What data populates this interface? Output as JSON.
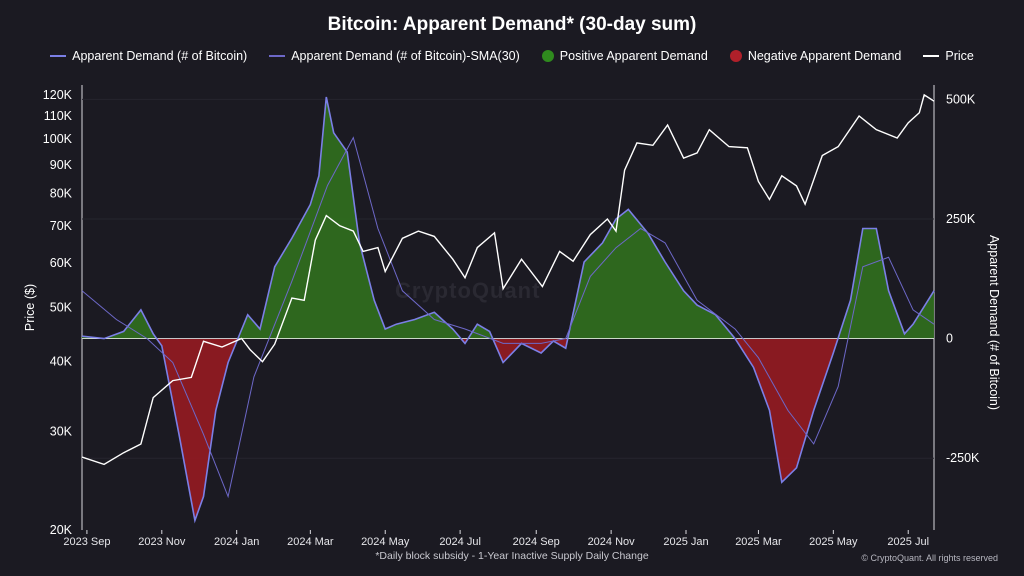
{
  "chart_data": {
    "type": "line",
    "title": "Bitcoin: Apparent Demand* (30-day sum)",
    "footnote": "*Daily block subsidy - 1-Year Inactive Supply Daily Change",
    "copyright": "© CryptoQuant. All rights reserved",
    "watermark": "CryptoQuant",
    "y_left": {
      "label": "Price ($)",
      "scale": "log",
      "range": [
        20000,
        125000
      ],
      "ticks": [
        20000,
        30000,
        40000,
        50000,
        60000,
        70000,
        80000,
        90000,
        100000,
        110000,
        120000
      ],
      "tick_labels": [
        "20K",
        "30K",
        "40K",
        "50K",
        "60K",
        "70K",
        "80K",
        "90K",
        "100K",
        "110K",
        "120K"
      ]
    },
    "y_right": {
      "label": "Apparent Demand (# of Bitcoin)",
      "range": [
        -400000,
        530000
      ],
      "ticks": [
        -250000,
        0,
        250000,
        500000
      ],
      "tick_labels": [
        "-250K",
        "0",
        "250K",
        "500K"
      ]
    },
    "x_axis": {
      "range": [
        "2023-08-28",
        "2025-07-22"
      ],
      "ticks": [
        "2023-09-01",
        "2023-11-01",
        "2024-01-01",
        "2024-03-01",
        "2024-05-01",
        "2024-07-01",
        "2024-09-01",
        "2024-11-01",
        "2025-01-01",
        "2025-03-01",
        "2025-05-01",
        "2025-07-01"
      ],
      "tick_labels": [
        "2023 Sep",
        "2023 Nov",
        "2024 Jan",
        "2024 Mar",
        "2024 May",
        "2024 Jul",
        "2024 Sep",
        "2024 Nov",
        "2025 Jan",
        "2025 Mar",
        "2025 May",
        "2025 Jul"
      ]
    },
    "colors": {
      "demand": "#7b7fe6",
      "sma": "#6d68c8",
      "positive": "#2f6b1f",
      "negative": "#8f1a22",
      "price": "#ffffff",
      "background": "#1b1a22"
    },
    "legend": [
      {
        "label": "Apparent Demand (# of Bitcoin)",
        "kind": "line",
        "color": "#7b7fe6"
      },
      {
        "label": "Apparent Demand (# of Bitcoin)-SMA(30)",
        "kind": "line",
        "color": "#6d68c8"
      },
      {
        "label": "Positive Apparent Demand",
        "kind": "dot",
        "color": "#2f8a1e"
      },
      {
        "label": "Negative Apparent Demand",
        "kind": "dot",
        "color": "#b0202a"
      },
      {
        "label": "Price",
        "kind": "line",
        "color": "#ffffff"
      }
    ],
    "series": [
      {
        "name": "Price",
        "axis": "left",
        "x": [
          "2023-08-28",
          "2023-09-15",
          "2023-10-01",
          "2023-10-15",
          "2023-10-25",
          "2023-11-10",
          "2023-11-25",
          "2023-12-05",
          "2023-12-20",
          "2024-01-05",
          "2024-01-12",
          "2024-01-22",
          "2024-02-01",
          "2024-02-15",
          "2024-02-25",
          "2024-03-05",
          "2024-03-14",
          "2024-03-25",
          "2024-04-05",
          "2024-04-13",
          "2024-04-25",
          "2024-05-01",
          "2024-05-15",
          "2024-05-28",
          "2024-06-10",
          "2024-06-25",
          "2024-07-05",
          "2024-07-15",
          "2024-07-29",
          "2024-08-05",
          "2024-08-20",
          "2024-09-06",
          "2024-09-20",
          "2024-10-01",
          "2024-10-15",
          "2024-10-29",
          "2024-11-05",
          "2024-11-12",
          "2024-11-22",
          "2024-12-05",
          "2024-12-17",
          "2024-12-30",
          "2025-01-10",
          "2025-01-20",
          "2025-02-05",
          "2025-02-20",
          "2025-03-01",
          "2025-03-10",
          "2025-03-20",
          "2025-04-01",
          "2025-04-08",
          "2025-04-22",
          "2025-05-05",
          "2025-05-22",
          "2025-06-05",
          "2025-06-22",
          "2025-07-01",
          "2025-07-10",
          "2025-07-14",
          "2025-07-22"
        ],
        "values": [
          27000,
          26200,
          27500,
          28500,
          34500,
          37000,
          37500,
          43500,
          42500,
          44000,
          42000,
          40000,
          43000,
          52000,
          51500,
          66000,
          73000,
          70000,
          68500,
          63000,
          64000,
          58000,
          66500,
          68500,
          67000,
          61000,
          56500,
          64000,
          68000,
          54000,
          61000,
          54500,
          63000,
          60500,
          67500,
          72000,
          68500,
          88000,
          98500,
          97500,
          106000,
          92500,
          94500,
          104000,
          97000,
          96500,
          84000,
          78000,
          86000,
          82500,
          76500,
          93500,
          97000,
          110000,
          104000,
          100500,
          107000,
          111500,
          120000,
          117000
        ]
      },
      {
        "name": "Apparent Demand (# of Bitcoin)",
        "axis": "right",
        "x": [
          "2023-08-28",
          "2023-09-15",
          "2023-10-01",
          "2023-10-15",
          "2023-10-25",
          "2023-11-01",
          "2023-11-15",
          "2023-11-28",
          "2023-12-05",
          "2023-12-15",
          "2023-12-25",
          "2024-01-10",
          "2024-01-20",
          "2024-02-01",
          "2024-02-15",
          "2024-03-01",
          "2024-03-08",
          "2024-03-14",
          "2024-03-20",
          "2024-03-31",
          "2024-04-10",
          "2024-04-22",
          "2024-05-01",
          "2024-05-10",
          "2024-05-25",
          "2024-06-10",
          "2024-06-25",
          "2024-07-05",
          "2024-07-15",
          "2024-07-25",
          "2024-08-05",
          "2024-08-20",
          "2024-09-05",
          "2024-09-15",
          "2024-09-25",
          "2024-10-10",
          "2024-10-25",
          "2024-11-05",
          "2024-11-15",
          "2024-12-01",
          "2024-12-15",
          "2024-12-30",
          "2025-01-10",
          "2025-01-25",
          "2025-02-10",
          "2025-02-25",
          "2025-03-10",
          "2025-03-20",
          "2025-04-01",
          "2025-04-15",
          "2025-05-01",
          "2025-05-15",
          "2025-05-25",
          "2025-06-05",
          "2025-06-15",
          "2025-06-28",
          "2025-07-05",
          "2025-07-22"
        ],
        "values": [
          5000,
          0,
          15000,
          60000,
          10000,
          -15000,
          -200000,
          -380000,
          -330000,
          -150000,
          -50000,
          50000,
          20000,
          150000,
          210000,
          280000,
          340000,
          505000,
          430000,
          390000,
          200000,
          80000,
          20000,
          30000,
          40000,
          55000,
          20000,
          -10000,
          30000,
          15000,
          -50000,
          -10000,
          -30000,
          -5000,
          -20000,
          160000,
          200000,
          250000,
          270000,
          220000,
          160000,
          100000,
          70000,
          50000,
          0,
          -60000,
          -150000,
          -300000,
          -270000,
          -150000,
          -30000,
          80000,
          230000,
          230000,
          100000,
          10000,
          30000,
          100000
        ]
      },
      {
        "name": "Apparent Demand (# of Bitcoin)-SMA(30)",
        "axis": "right",
        "x": [
          "2023-08-28",
          "2023-09-25",
          "2023-10-20",
          "2023-11-10",
          "2023-12-05",
          "2023-12-25",
          "2024-01-15",
          "2024-02-15",
          "2024-03-15",
          "2024-04-05",
          "2024-04-25",
          "2024-05-15",
          "2024-06-10",
          "2024-07-05",
          "2024-08-05",
          "2024-09-05",
          "2024-09-25",
          "2024-10-15",
          "2024-11-05",
          "2024-11-25",
          "2024-12-15",
          "2025-01-10",
          "2025-02-10",
          "2025-03-01",
          "2025-03-25",
          "2025-04-15",
          "2025-05-05",
          "2025-05-25",
          "2025-06-15",
          "2025-07-05",
          "2025-07-22"
        ],
        "values": [
          100000,
          40000,
          0,
          -50000,
          -200000,
          -330000,
          -80000,
          120000,
          320000,
          420000,
          230000,
          100000,
          40000,
          20000,
          -10000,
          -10000,
          0,
          130000,
          190000,
          230000,
          200000,
          80000,
          20000,
          -40000,
          -150000,
          -220000,
          -100000,
          150000,
          170000,
          60000,
          30000
        ]
      }
    ]
  }
}
